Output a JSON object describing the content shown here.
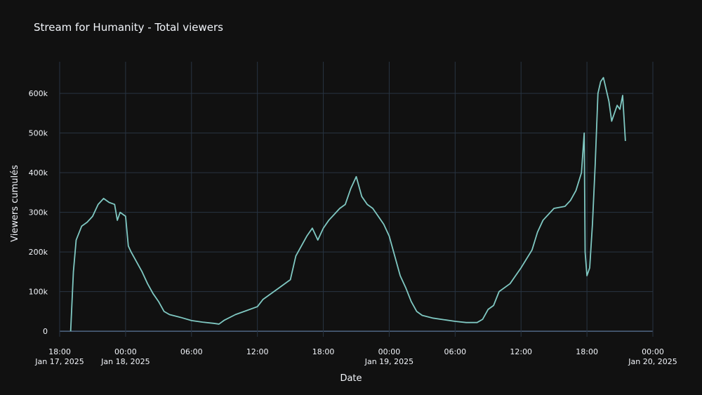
{
  "chart_data": {
    "type": "line",
    "title": "Stream for Humanity - Total viewers",
    "x_label": "Date",
    "y_label": "Viewers cumulés",
    "grid": true,
    "x": [
      "2025-01-17 19:00",
      "2025-01-17 19:15",
      "2025-01-17 19:30",
      "2025-01-17 20:00",
      "2025-01-17 20:30",
      "2025-01-17 21:00",
      "2025-01-17 21:30",
      "2025-01-17 22:00",
      "2025-01-17 22:30",
      "2025-01-17 23:00",
      "2025-01-17 23:15",
      "2025-01-17 23:30",
      "2025-01-18 00:00",
      "2025-01-18 00:15",
      "2025-01-18 00:30",
      "2025-01-18 01:00",
      "2025-01-18 01:30",
      "2025-01-18 02:00",
      "2025-01-18 02:30",
      "2025-01-18 03:00",
      "2025-01-18 03:30",
      "2025-01-18 04:00",
      "2025-01-18 05:00",
      "2025-01-18 06:00",
      "2025-01-18 07:00",
      "2025-01-18 08:00",
      "2025-01-18 08:30",
      "2025-01-18 09:00",
      "2025-01-18 10:00",
      "2025-01-18 11:00",
      "2025-01-18 12:00",
      "2025-01-18 12:30",
      "2025-01-18 13:00",
      "2025-01-18 14:00",
      "2025-01-18 15:00",
      "2025-01-18 15:30",
      "2025-01-18 16:00",
      "2025-01-18 16:30",
      "2025-01-18 17:00",
      "2025-01-18 17:30",
      "2025-01-18 18:00",
      "2025-01-18 18:30",
      "2025-01-18 19:00",
      "2025-01-18 19:30",
      "2025-01-18 20:00",
      "2025-01-18 20:30",
      "2025-01-18 21:00",
      "2025-01-18 21:30",
      "2025-01-18 22:00",
      "2025-01-18 22:30",
      "2025-01-18 23:00",
      "2025-01-18 23:30",
      "2025-01-19 00:00",
      "2025-01-19 00:30",
      "2025-01-19 01:00",
      "2025-01-19 01:30",
      "2025-01-19 02:00",
      "2025-01-19 02:30",
      "2025-01-19 03:00",
      "2025-01-19 04:00",
      "2025-01-19 05:00",
      "2025-01-19 06:00",
      "2025-01-19 07:00",
      "2025-01-19 08:00",
      "2025-01-19 08:30",
      "2025-01-19 09:00",
      "2025-01-19 09:30",
      "2025-01-19 10:00",
      "2025-01-19 11:00",
      "2025-01-19 11:30",
      "2025-01-19 12:00",
      "2025-01-19 13:00",
      "2025-01-19 13:30",
      "2025-01-19 14:00",
      "2025-01-19 15:00",
      "2025-01-19 16:00",
      "2025-01-19 16:30",
      "2025-01-19 17:00",
      "2025-01-19 17:30",
      "2025-01-19 17:45",
      "2025-01-19 17:50",
      "2025-01-19 18:00",
      "2025-01-19 18:15",
      "2025-01-19 18:30",
      "2025-01-19 18:45",
      "2025-01-19 19:00",
      "2025-01-19 19:15",
      "2025-01-19 19:30",
      "2025-01-19 20:00",
      "2025-01-19 20:15",
      "2025-01-19 20:45",
      "2025-01-19 21:00",
      "2025-01-19 21:15",
      "2025-01-19 21:30"
    ],
    "series": [
      {
        "name": "Total viewers",
        "color": "#7fc8c2",
        "values": [
          0,
          150000,
          230000,
          265000,
          275000,
          290000,
          320000,
          335000,
          325000,
          320000,
          280000,
          300000,
          290000,
          215000,
          200000,
          175000,
          150000,
          120000,
          95000,
          75000,
          50000,
          42000,
          35000,
          27000,
          23000,
          20000,
          18000,
          28000,
          42000,
          52000,
          62000,
          80000,
          90000,
          110000,
          130000,
          190000,
          215000,
          240000,
          260000,
          230000,
          260000,
          280000,
          295000,
          310000,
          320000,
          360000,
          390000,
          340000,
          320000,
          310000,
          290000,
          270000,
          240000,
          190000,
          140000,
          110000,
          75000,
          50000,
          40000,
          33000,
          29000,
          25000,
          22000,
          22000,
          30000,
          55000,
          65000,
          100000,
          120000,
          140000,
          160000,
          205000,
          250000,
          280000,
          310000,
          315000,
          330000,
          355000,
          400000,
          500000,
          200000,
          140000,
          160000,
          270000,
          420000,
          600000,
          630000,
          640000,
          580000,
          530000,
          570000,
          560000,
          595000,
          480000
        ]
      }
    ],
    "xlim": [
      "2025-01-17 18:00",
      "2025-01-20 00:00"
    ],
    "xticks": [
      {
        "value": "2025-01-17 18:00",
        "label": "18:00\nJan 17, 2025"
      },
      {
        "value": "2025-01-18 00:00",
        "label": "00:00\nJan 18, 2025"
      },
      {
        "value": "2025-01-18 06:00",
        "label": "06:00"
      },
      {
        "value": "2025-01-18 12:00",
        "label": "12:00"
      },
      {
        "value": "2025-01-18 18:00",
        "label": "18:00"
      },
      {
        "value": "2025-01-19 00:00",
        "label": "00:00\nJan 19, 2025"
      },
      {
        "value": "2025-01-19 06:00",
        "label": "06:00"
      },
      {
        "value": "2025-01-19 12:00",
        "label": "12:00"
      },
      {
        "value": "2025-01-19 18:00",
        "label": "18:00"
      },
      {
        "value": "2025-01-20 00:00",
        "label": "00:00\nJan 20, 2025"
      }
    ],
    "ylim": [
      -14000,
      680000
    ],
    "yticks": [
      0,
      {
        "value": 100000,
        "label": "100k"
      },
      {
        "value": 200000,
        "label": "200k"
      },
      {
        "value": 300000,
        "label": "300k"
      },
      {
        "value": 400000,
        "label": "400k"
      },
      {
        "value": 500000,
        "label": "500k"
      },
      {
        "value": 600000,
        "label": "600k"
      }
    ]
  }
}
